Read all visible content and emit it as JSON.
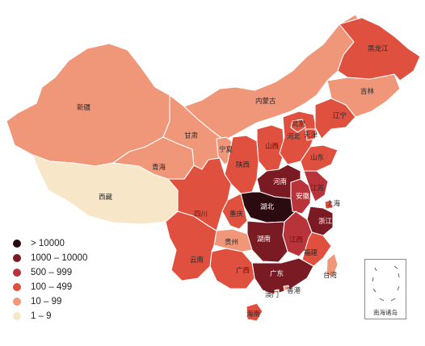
{
  "legend": {
    "items": [
      {
        "label": "> 10000",
        "color": "#2b0b10"
      },
      {
        "label": "1000 – 10000",
        "color": "#7a1a22"
      },
      {
        "label": "500 – 999",
        "color": "#b8343a"
      },
      {
        "label": "100 – 499",
        "color": "#e0503f"
      },
      {
        "label": "10 – 99",
        "color": "#f0977a"
      },
      {
        "label": "1 – 9",
        "color": "#f8e6c8"
      }
    ]
  },
  "provinces": [
    {
      "name": "新疆",
      "level": "10 – 99"
    },
    {
      "name": "西藏",
      "level": "1 – 9"
    },
    {
      "name": "青海",
      "level": "10 – 99"
    },
    {
      "name": "甘肃",
      "level": "10 – 99"
    },
    {
      "name": "内蒙古",
      "level": "10 – 99"
    },
    {
      "name": "宁夏",
      "level": "10 – 99"
    },
    {
      "name": "陕西",
      "level": "100 – 499"
    },
    {
      "name": "山西",
      "level": "100 – 499"
    },
    {
      "name": "河北",
      "level": "100 – 499"
    },
    {
      "name": "北京",
      "level": "100 – 499"
    },
    {
      "name": "天津",
      "level": "100 – 499"
    },
    {
      "name": "辽宁",
      "level": "100 – 499"
    },
    {
      "name": "吉林",
      "level": "10 – 99"
    },
    {
      "name": "黑龙江",
      "level": "100 – 499"
    },
    {
      "name": "山东",
      "level": "100 – 499"
    },
    {
      "name": "河南",
      "level": "1000 – 10000"
    },
    {
      "name": "湖北",
      "level": "> 10000"
    },
    {
      "name": "安徽",
      "level": "500 – 999"
    },
    {
      "name": "江苏",
      "level": "500 – 999"
    },
    {
      "name": "上海",
      "level": "100 – 499"
    },
    {
      "name": "浙江",
      "level": "1000 – 10000"
    },
    {
      "name": "江西",
      "level": "500 – 999"
    },
    {
      "name": "湖南",
      "level": "1000 – 10000"
    },
    {
      "name": "福建",
      "level": "100 – 499"
    },
    {
      "name": "广东",
      "level": "1000 – 10000"
    },
    {
      "name": "广西",
      "level": "100 – 499"
    },
    {
      "name": "海南",
      "level": "100 – 499"
    },
    {
      "name": "贵州",
      "level": "10 – 99"
    },
    {
      "name": "云南",
      "level": "100 – 499"
    },
    {
      "name": "四川",
      "level": "100 – 499"
    },
    {
      "name": "重庆",
      "level": "100 – 499"
    },
    {
      "name": "台湾",
      "level": "10 – 99"
    },
    {
      "name": "香港",
      "level": "10 – 99"
    },
    {
      "name": "澳门",
      "level": "1 – 9"
    }
  ],
  "inset": {
    "label": "南海诸岛"
  }
}
